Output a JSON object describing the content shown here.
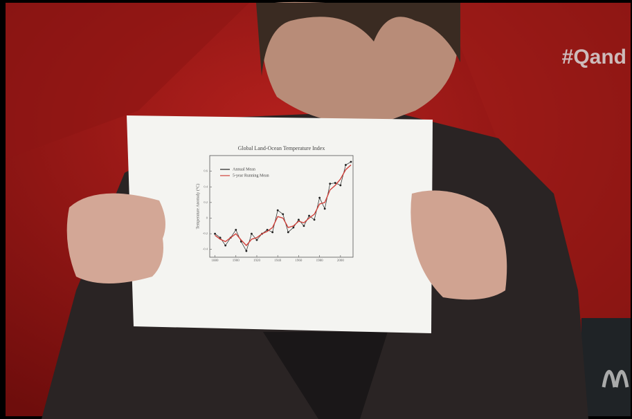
{
  "overlay": {
    "hashtag": "#Qand"
  },
  "chart_data": {
    "type": "line",
    "title": "Global Land-Ocean Temperature Index",
    "y_label": "Temperature Anomaly (°C)",
    "x": [
      1880,
      1885,
      1890,
      1895,
      1900,
      1905,
      1910,
      1915,
      1920,
      1925,
      1930,
      1935,
      1940,
      1945,
      1950,
      1955,
      1960,
      1965,
      1970,
      1975,
      1980,
      1985,
      1990,
      1995,
      2000,
      2005,
      2010
    ],
    "series": [
      {
        "name": "Annual Mean",
        "color": "#222222",
        "values": [
          -0.2,
          -0.25,
          -0.35,
          -0.25,
          -0.15,
          -0.3,
          -0.42,
          -0.2,
          -0.28,
          -0.2,
          -0.15,
          -0.18,
          0.1,
          0.05,
          -0.18,
          -0.12,
          -0.02,
          -0.1,
          0.03,
          -0.02,
          0.26,
          0.12,
          0.44,
          0.45,
          0.42,
          0.68,
          0.72
        ]
      },
      {
        "name": "5-year Running Mean",
        "color": "#d0403a",
        "values": [
          -0.22,
          -0.27,
          -0.3,
          -0.25,
          -0.2,
          -0.28,
          -0.35,
          -0.27,
          -0.25,
          -0.2,
          -0.17,
          -0.12,
          0.02,
          0.0,
          -0.12,
          -0.1,
          -0.04,
          -0.06,
          0.0,
          0.05,
          0.18,
          0.2,
          0.36,
          0.42,
          0.5,
          0.62,
          0.68
        ]
      }
    ],
    "xlim": [
      1875,
      2012
    ],
    "xticks": [
      1880,
      1900,
      1920,
      1940,
      1960,
      1980,
      2000
    ],
    "ylim": [
      -0.5,
      0.8
    ],
    "yticks": [
      -0.4,
      -0.2,
      0,
      0.2,
      0.4,
      0.6
    ]
  }
}
